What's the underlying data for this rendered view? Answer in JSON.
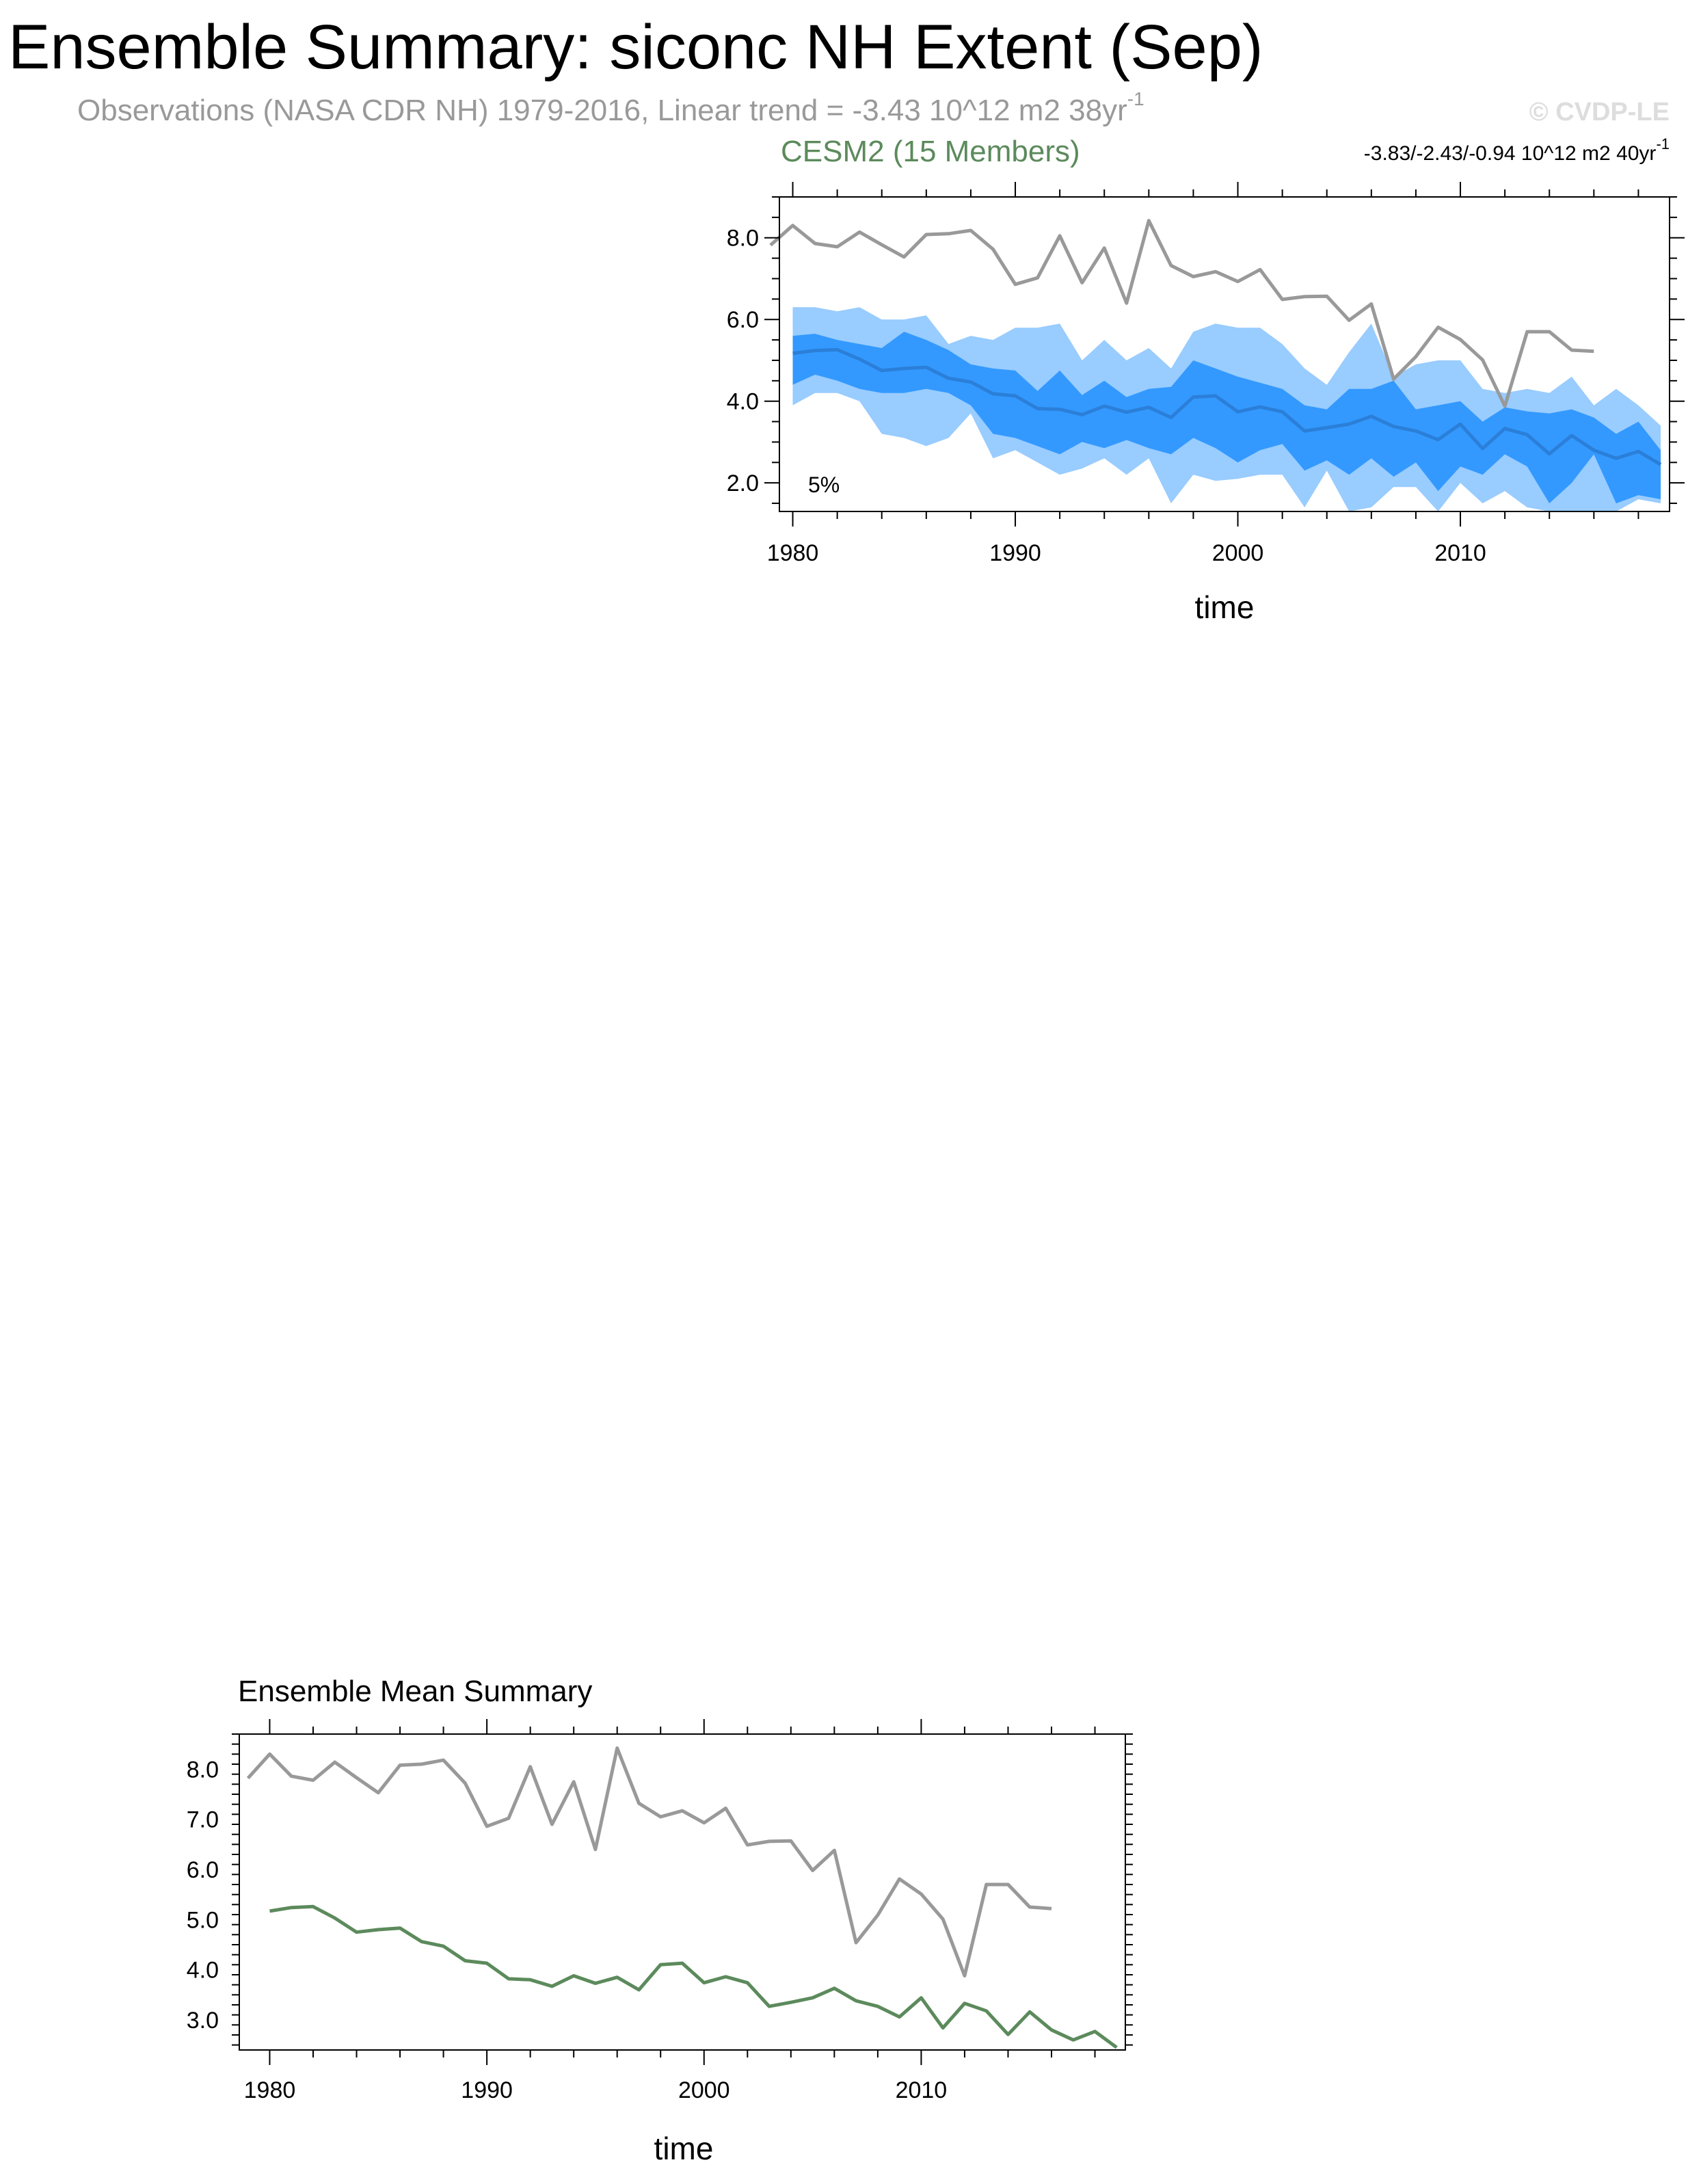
{
  "header": {
    "title": "Ensemble Summary: siconc NH Extent (Sep)",
    "subtitle": "Observations (NASA CDR NH) 1979-2016, Linear trend = -3.43 10^12 m2 38yr",
    "subtitle_sup": "-1",
    "watermark": "© CVDP-LE"
  },
  "chart_data": [
    {
      "type": "area",
      "title": "CESM2 (15 Members)",
      "trend_text": "-3.83/-2.43/-0.94 10^12 m2 40yr",
      "trend_sup": "-1",
      "annotation": "5%",
      "xlabel": "time",
      "ylabel": "",
      "xlim": [
        1979.4,
        2019.4
      ],
      "ylim": [
        1.3,
        9.0
      ],
      "xticks": [
        1980,
        1990,
        2000,
        2010
      ],
      "yticks": [
        2.0,
        4.0,
        6.0,
        8.0
      ],
      "ytick_labels": [
        "2.0",
        "4.0",
        "6.0",
        "8.0"
      ],
      "colors": {
        "obs": "#999999",
        "mean": "#2b7fd8",
        "inner_band": "#3399ff",
        "outer_band": "#99ccff",
        "model": "#5c8a5c"
      },
      "obs_years": [
        1979,
        1980,
        1981,
        1982,
        1983,
        1984,
        1985,
        1986,
        1987,
        1988,
        1989,
        1990,
        1991,
        1992,
        1993,
        1994,
        1995,
        1996,
        1997,
        1998,
        1999,
        2000,
        2001,
        2002,
        2003,
        2004,
        2005,
        2006,
        2007,
        2008,
        2009,
        2010,
        2011,
        2012,
        2013,
        2014,
        2015,
        2016
      ],
      "obs_values": [
        7.82,
        8.3,
        7.86,
        7.78,
        8.14,
        7.83,
        7.53,
        8.08,
        8.1,
        8.18,
        7.72,
        6.86,
        7.02,
        8.05,
        6.9,
        7.75,
        6.4,
        8.42,
        7.32,
        7.05,
        7.17,
        6.93,
        7.22,
        6.49,
        6.56,
        6.57,
        5.98,
        6.38,
        4.54,
        5.09,
        5.81,
        5.51,
        5.01,
        3.88,
        5.7,
        5.7,
        5.25,
        5.22
      ],
      "years": [
        1980,
        1981,
        1982,
        1983,
        1984,
        1985,
        1986,
        1987,
        1988,
        1989,
        1990,
        1991,
        1992,
        1993,
        1994,
        1995,
        1996,
        1997,
        1998,
        1999,
        2000,
        2001,
        2002,
        2003,
        2004,
        2005,
        2006,
        2007,
        2008,
        2009,
        2010,
        2011,
        2012,
        2013,
        2014,
        2015,
        2016,
        2017,
        2018,
        2019
      ],
      "mean": [
        5.17,
        5.24,
        5.26,
        5.03,
        4.75,
        4.8,
        4.83,
        4.56,
        4.47,
        4.18,
        4.13,
        3.82,
        3.8,
        3.67,
        3.88,
        3.73,
        3.85,
        3.6,
        4.1,
        4.13,
        3.74,
        3.86,
        3.74,
        3.27,
        3.35,
        3.44,
        3.63,
        3.38,
        3.27,
        3.06,
        3.44,
        2.84,
        3.33,
        3.18,
        2.71,
        3.16,
        2.8,
        2.6,
        2.77,
        2.45
      ],
      "inner_upper": [
        5.6,
        5.65,
        5.5,
        5.4,
        5.3,
        5.7,
        5.5,
        5.25,
        4.9,
        4.8,
        4.75,
        4.25,
        4.75,
        4.15,
        4.5,
        4.1,
        4.3,
        4.35,
        5.0,
        4.8,
        4.6,
        4.45,
        4.3,
        3.9,
        3.8,
        4.3,
        4.3,
        4.5,
        3.8,
        3.9,
        4.0,
        3.5,
        3.85,
        3.75,
        3.7,
        3.8,
        3.6,
        3.2,
        3.5,
        2.8
      ],
      "inner_lower": [
        4.4,
        4.65,
        4.5,
        4.3,
        4.2,
        4.2,
        4.3,
        4.2,
        3.9,
        3.2,
        3.1,
        2.9,
        2.7,
        3.0,
        2.85,
        3.05,
        2.85,
        2.7,
        3.1,
        2.85,
        2.5,
        2.8,
        2.95,
        2.3,
        2.55,
        2.2,
        2.6,
        2.15,
        2.5,
        1.8,
        2.4,
        2.2,
        2.7,
        2.4,
        1.5,
        2.0,
        2.7,
        1.5,
        1.7,
        1.6
      ],
      "outer_upper": [
        6.3,
        6.3,
        6.2,
        6.3,
        6.0,
        6.0,
        6.1,
        5.4,
        5.6,
        5.5,
        5.8,
        5.8,
        5.9,
        5.0,
        5.5,
        5.0,
        5.3,
        4.8,
        5.7,
        5.9,
        5.8,
        5.8,
        5.4,
        4.8,
        4.4,
        5.2,
        5.9,
        4.6,
        4.9,
        5.0,
        5.0,
        4.3,
        4.2,
        4.3,
        4.2,
        4.6,
        3.9,
        4.3,
        3.9,
        3.4
      ],
      "outer_lower": [
        3.9,
        4.2,
        4.2,
        4.0,
        3.2,
        3.1,
        2.9,
        3.1,
        3.7,
        2.6,
        2.8,
        2.5,
        2.2,
        2.35,
        2.6,
        2.2,
        2.6,
        1.5,
        2.2,
        2.05,
        2.1,
        2.2,
        2.2,
        1.4,
        2.3,
        1.1,
        1.4,
        1.9,
        1.9,
        1.2,
        2.0,
        1.5,
        1.8,
        1.4,
        0.9,
        1.3,
        1.0,
        0.9,
        1.6,
        1.5
      ]
    },
    {
      "type": "line",
      "title": "Ensemble Mean Summary",
      "xlabel": "time",
      "ylabel": "",
      "xlim": [
        1978.6,
        2019.4
      ],
      "ylim": [
        2.4,
        8.7
      ],
      "xticks": [
        1980,
        1990,
        2000,
        2010
      ],
      "yticks": [
        3.0,
        4.0,
        5.0,
        6.0,
        7.0,
        8.0
      ],
      "ytick_labels": [
        "3.0",
        "4.0",
        "5.0",
        "6.0",
        "7.0",
        "8.0"
      ],
      "series": [
        {
          "key": "obs",
          "color": "#999999"
        },
        {
          "key": "model",
          "color": "#5c8a5c"
        }
      ]
    }
  ]
}
